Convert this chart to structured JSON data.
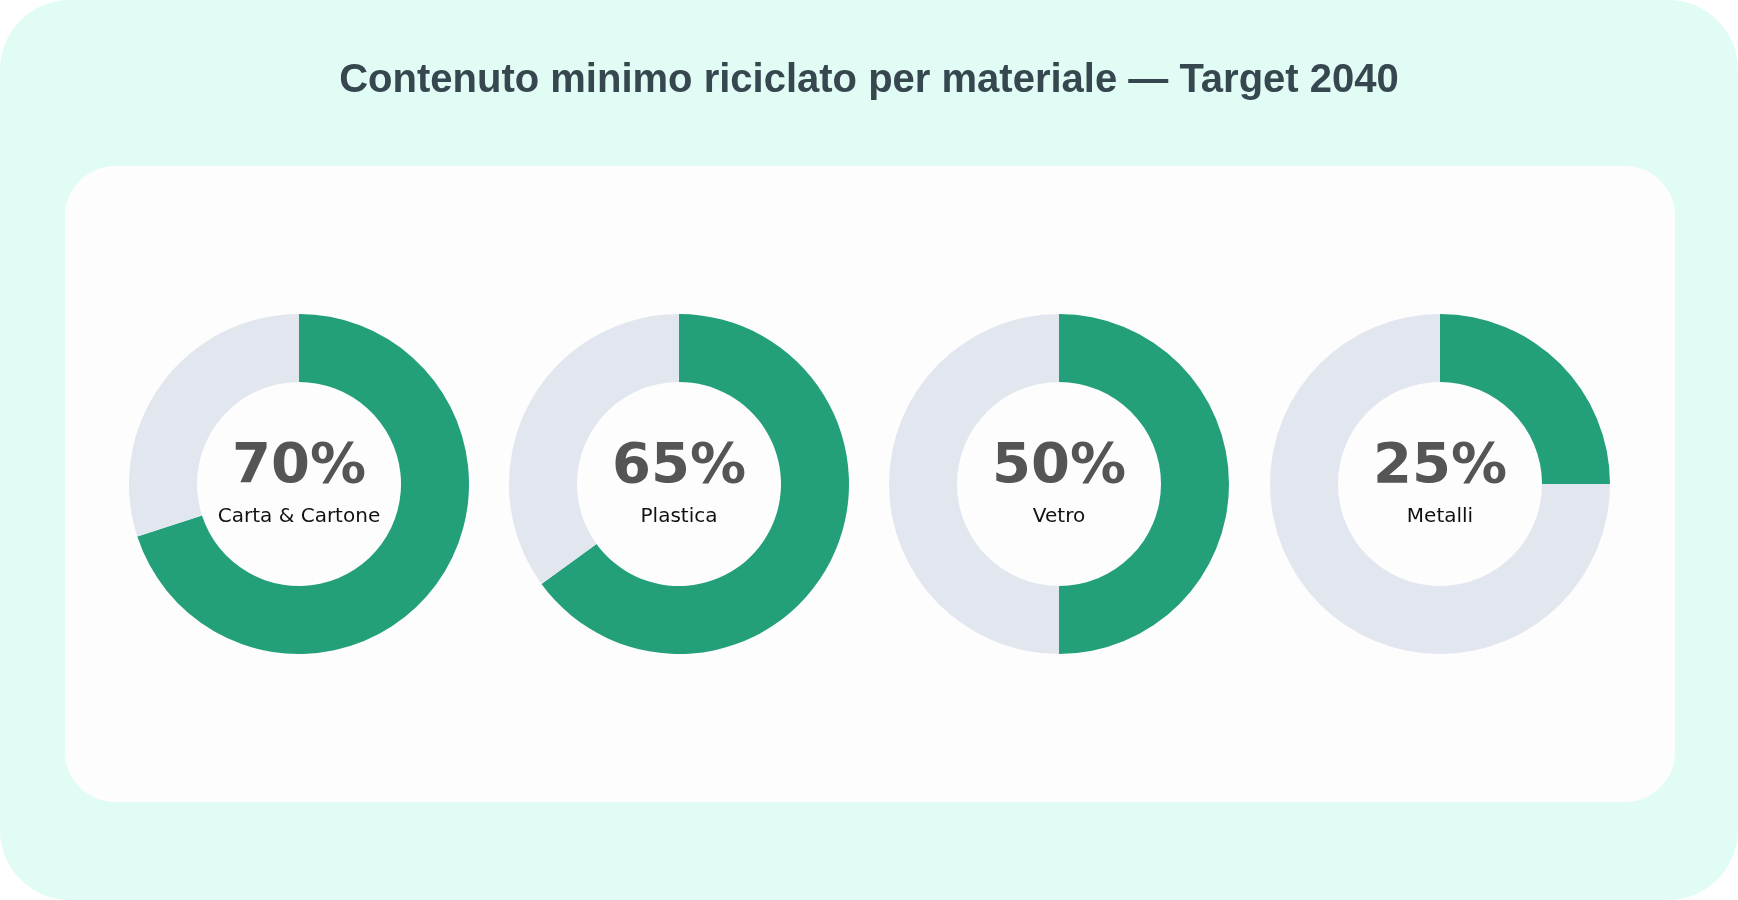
{
  "chart_data": [
    {
      "type": "donut",
      "title": "Contenuto minimo riciclato per materiale — Target 2040",
      "categories": [
        "Carta & Cartone",
        null
      ],
      "values": [
        70,
        30
      ],
      "colors": [
        "#23a07a",
        "#e2e6ee"
      ],
      "value_labels": [
        "70%",
        null
      ]
    },
    {
      "type": "donut",
      "categories": [
        "Plastica",
        null
      ],
      "values": [
        65,
        35
      ],
      "colors": [
        "#23a07a",
        "#e2e6ee"
      ],
      "value_labels": [
        "65%",
        null
      ]
    },
    {
      "type": "donut",
      "categories": [
        "Vetro",
        null
      ],
      "values": [
        50,
        50
      ],
      "colors": [
        "#23a07a",
        "#e2e6ee"
      ],
      "value_labels": [
        "50%",
        null
      ]
    },
    {
      "type": "donut",
      "categories": [
        "Metalli",
        null
      ],
      "values": [
        25,
        75
      ],
      "colors": [
        "#23a07a",
        "#e2e6ee"
      ],
      "value_labels": [
        "25%",
        null
      ]
    }
  ]
}
